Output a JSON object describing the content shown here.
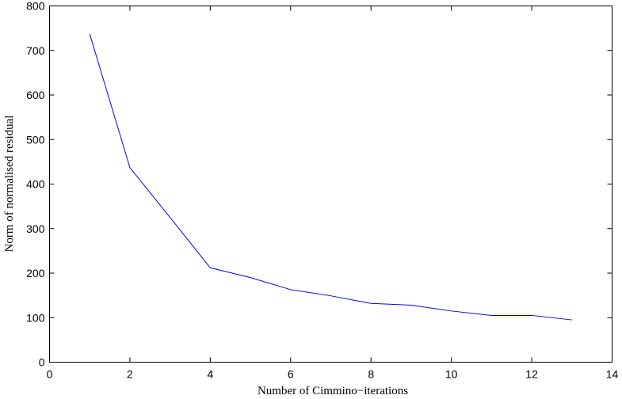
{
  "chart_data": {
    "type": "line",
    "title": "",
    "xlabel": "Number of Cimmino−iterations",
    "ylabel": "Norm of normalised residual",
    "xlim": [
      0,
      14
    ],
    "ylim": [
      0,
      800
    ],
    "xticks": [
      0,
      2,
      4,
      6,
      8,
      10,
      12,
      14
    ],
    "yticks": [
      0,
      100,
      200,
      300,
      400,
      500,
      600,
      700,
      800
    ],
    "grid": false,
    "line_color": "#0000ff",
    "series": [
      {
        "x": [
          1,
          2,
          3,
          4,
          5,
          6,
          7,
          8,
          9,
          10,
          11,
          12,
          13
        ],
        "values": [
          737,
          437,
          325,
          212,
          190,
          163,
          149,
          132,
          128,
          115,
          105,
          105,
          95
        ]
      }
    ]
  }
}
